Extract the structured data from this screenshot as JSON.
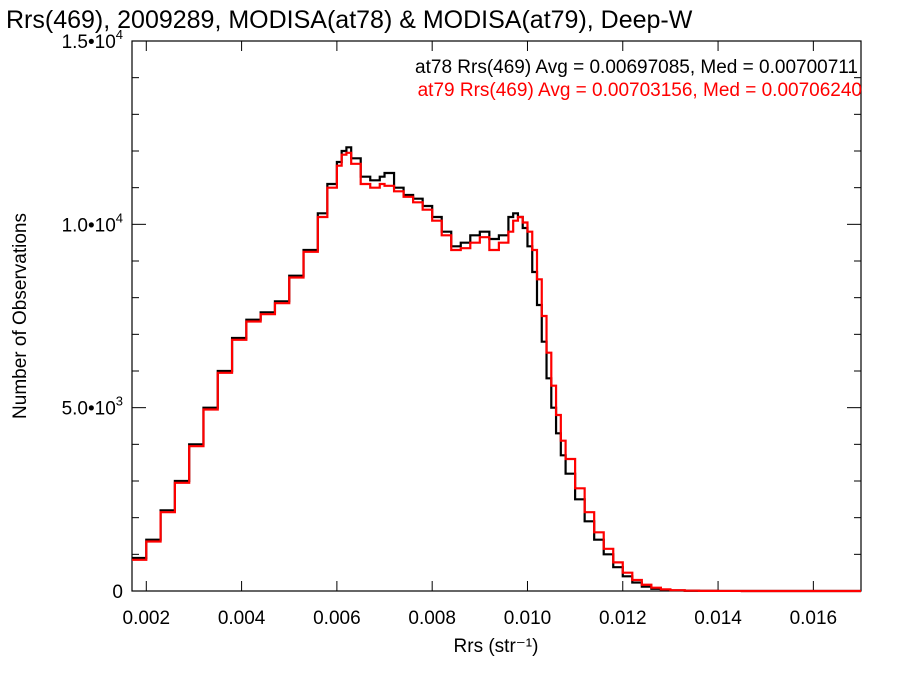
{
  "chart_data": {
    "type": "line",
    "step": true,
    "title": "Rrs(469), 2009289, MODISA(at78) & MODISA(at79), Deep-W",
    "xlabel": "Rrs (str⁻¹)",
    "ylabel": "Number of Observations",
    "xlim": [
      0.0017,
      0.017
    ],
    "ylim": [
      0,
      15000
    ],
    "x_ticks": [
      0.002,
      0.004,
      0.006,
      0.008,
      0.01,
      0.012,
      0.014,
      0.016
    ],
    "x_tick_labels": [
      "0.002",
      "0.004",
      "0.006",
      "0.008",
      "0.010",
      "0.012",
      "0.014",
      "0.016"
    ],
    "y_ticks": [
      0,
      5000,
      10000,
      15000
    ],
    "y_tick_labels": [
      {
        "mantissa": "0",
        "exponent": ""
      },
      {
        "mantissa": "5.0•10",
        "exponent": "3"
      },
      {
        "mantissa": "1.0•10",
        "exponent": "4"
      },
      {
        "mantissa": "1.5•10",
        "exponent": "4"
      }
    ],
    "grid": false,
    "annotations": [
      {
        "text": "at78 Rrs(469) Avg = 0.00697085, Med = 0.00700711",
        "color": "#000000"
      },
      {
        "text": "at79 Rrs(469) Avg = 0.00703156, Med = 0.00706240",
        "color": "#ff0000"
      }
    ],
    "series": [
      {
        "color": "#000000",
        "x": [
          0.0017,
          0.002,
          0.0023,
          0.0026,
          0.0029,
          0.0032,
          0.0035,
          0.0038,
          0.0041,
          0.0044,
          0.0047,
          0.005,
          0.0053,
          0.0056,
          0.0058,
          0.006,
          0.0061,
          0.0062,
          0.0063,
          0.0065,
          0.0067,
          0.0069,
          0.007,
          0.0072,
          0.0074,
          0.0076,
          0.0078,
          0.008,
          0.0082,
          0.0084,
          0.0086,
          0.0088,
          0.009,
          0.0092,
          0.0094,
          0.0096,
          0.0097,
          0.0098,
          0.0099,
          0.01,
          0.0101,
          0.0102,
          0.0103,
          0.0104,
          0.0105,
          0.0106,
          0.0107,
          0.0108,
          0.011,
          0.0112,
          0.0114,
          0.0116,
          0.0118,
          0.012,
          0.0122,
          0.0124,
          0.0126,
          0.0128,
          0.013,
          0.0133,
          0.0136,
          0.014,
          0.0145,
          0.015,
          0.016,
          0.017
        ],
        "y": [
          900,
          1400,
          2200,
          3000,
          4000,
          5000,
          6000,
          6900,
          7400,
          7600,
          7900,
          8600,
          9300,
          10300,
          11100,
          11700,
          12000,
          12100,
          11800,
          11300,
          11200,
          11300,
          11400,
          11000,
          10800,
          10700,
          10500,
          10200,
          9800,
          9400,
          9500,
          9700,
          9800,
          9600,
          9700,
          10200,
          10300,
          10200,
          9900,
          9400,
          8700,
          7800,
          6800,
          5800,
          5000,
          4300,
          3700,
          3200,
          2500,
          1900,
          1400,
          1000,
          650,
          400,
          230,
          120,
          60,
          30,
          15,
          6,
          3,
          1,
          0,
          0,
          0,
          0
        ]
      },
      {
        "color": "#ff0000",
        "x": [
          0.0017,
          0.002,
          0.0023,
          0.0026,
          0.0029,
          0.0032,
          0.0035,
          0.0038,
          0.0041,
          0.0044,
          0.0047,
          0.005,
          0.0053,
          0.0056,
          0.0058,
          0.006,
          0.0061,
          0.0062,
          0.0063,
          0.0065,
          0.0067,
          0.0069,
          0.007,
          0.0072,
          0.0074,
          0.0076,
          0.0078,
          0.008,
          0.0082,
          0.0084,
          0.0086,
          0.0088,
          0.009,
          0.0092,
          0.0094,
          0.0096,
          0.0097,
          0.0098,
          0.0099,
          0.01,
          0.0101,
          0.0102,
          0.0103,
          0.0104,
          0.0105,
          0.0106,
          0.0107,
          0.0108,
          0.011,
          0.0112,
          0.0114,
          0.0116,
          0.0118,
          0.012,
          0.0122,
          0.0124,
          0.0126,
          0.0128,
          0.013,
          0.0133,
          0.0136,
          0.014,
          0.0145,
          0.015,
          0.016,
          0.017
        ],
        "y": [
          850,
          1350,
          2150,
          2950,
          3950,
          4950,
          5950,
          6850,
          7350,
          7550,
          7850,
          8550,
          9250,
          10200,
          11000,
          11600,
          11900,
          11950,
          11650,
          11100,
          11000,
          11100,
          11050,
          10900,
          10750,
          10600,
          10400,
          10100,
          9700,
          9300,
          9350,
          9500,
          9650,
          9300,
          9500,
          9800,
          10100,
          10200,
          10050,
          9800,
          9300,
          8500,
          7500,
          6500,
          5600,
          4800,
          4100,
          3600,
          2800,
          2150,
          1600,
          1150,
          780,
          500,
          300,
          170,
          90,
          45,
          22,
          9,
          4,
          1,
          0,
          0,
          0,
          0
        ]
      }
    ]
  }
}
